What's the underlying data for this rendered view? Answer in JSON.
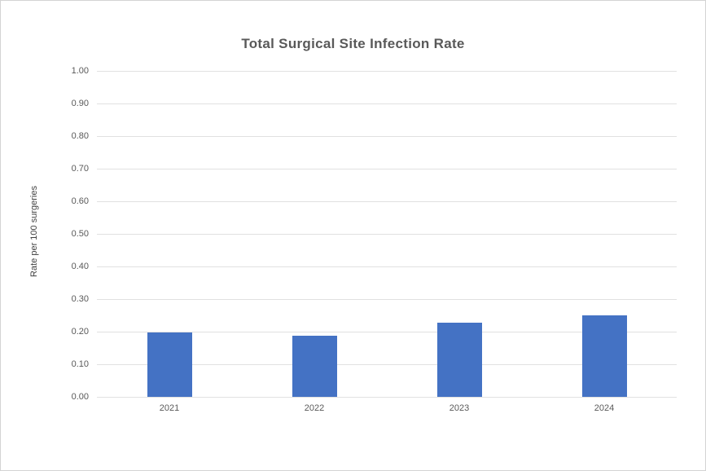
{
  "page": {
    "background_color": "#ffffff",
    "border_color": "#d4d4d4"
  },
  "chart_data": {
    "type": "bar",
    "title": "Total Surgical Site Infection Rate",
    "xlabel": "",
    "ylabel": "Rate per 100 surgeries",
    "categories": [
      "2021",
      "2022",
      "2023",
      "2024"
    ],
    "values": [
      0.197,
      0.188,
      0.227,
      0.25
    ],
    "ylim": [
      0.0,
      1.0
    ],
    "ytick_step": 0.1,
    "ytick_labels": [
      "0.00",
      "0.10",
      "0.20",
      "0.30",
      "0.40",
      "0.50",
      "0.60",
      "0.70",
      "0.80",
      "0.90",
      "1.00"
    ],
    "grid": true,
    "legend": "none",
    "colors": {
      "bar": "#4472C4",
      "gridline": "#e1e1e1",
      "title_text": "#595959",
      "tick_text": "#595959",
      "axis_title_text": "#3f3f3f"
    }
  }
}
